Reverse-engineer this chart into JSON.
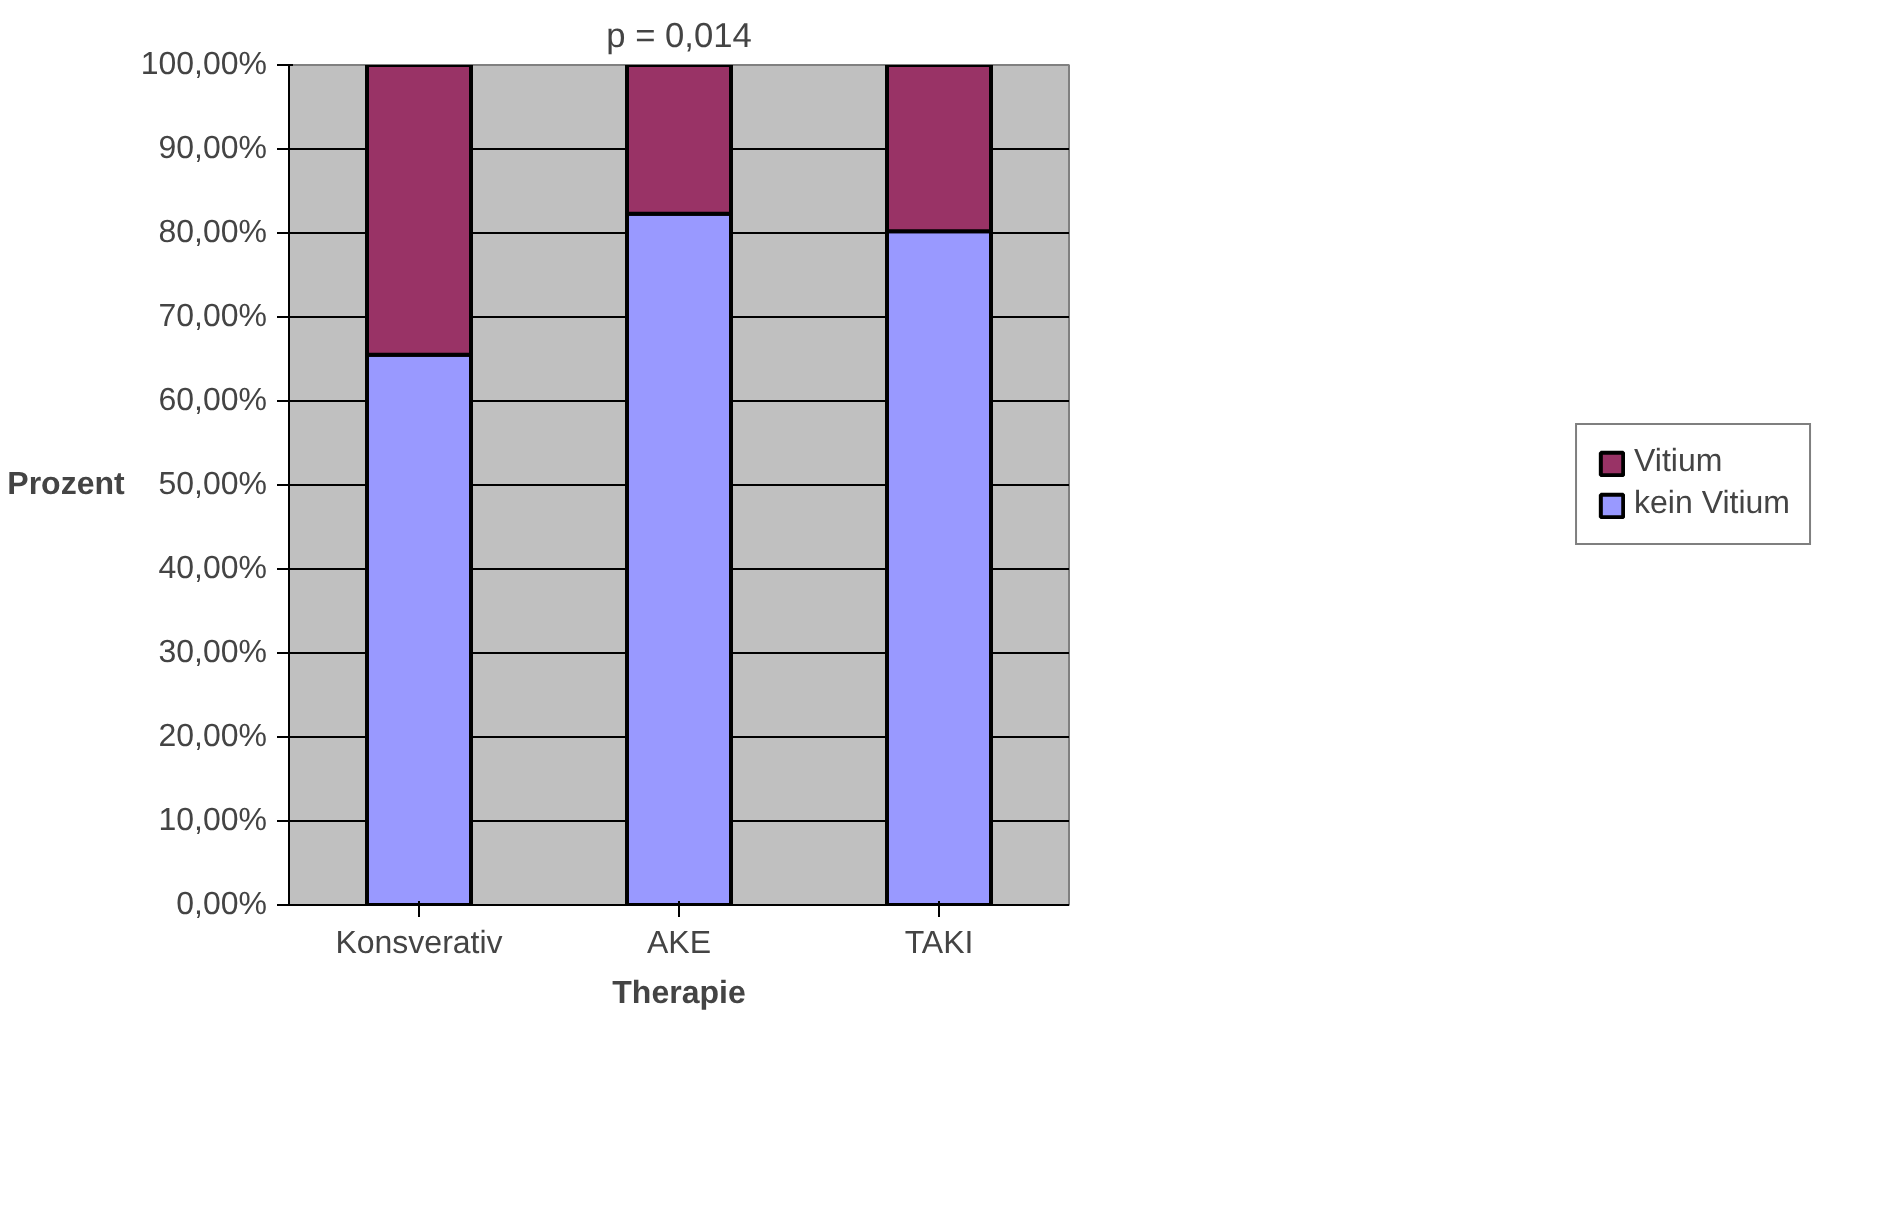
{
  "chart_data": {
    "type": "bar",
    "stacked": true,
    "xlabel": "Therapie",
    "ylabel": "Prozent",
    "annotations": [
      "p = 0,014"
    ],
    "categories": [
      "Konsverativ",
      "AKE",
      "TAKI"
    ],
    "series": [
      {
        "name": "kein Vitium",
        "color": "#9999ff",
        "values": [
          65.5,
          82.3,
          80.2
        ]
      },
      {
        "name": "Vitium",
        "color": "#993366",
        "values": [
          34.5,
          17.7,
          19.8
        ]
      }
    ],
    "ylim": [
      0,
      100
    ],
    "yticks": [
      {
        "value": 0,
        "label": "0,00%"
      },
      {
        "value": 10,
        "label": "10,00%"
      },
      {
        "value": 20,
        "label": "20,00%"
      },
      {
        "value": 30,
        "label": "30,00%"
      },
      {
        "value": 40,
        "label": "40,00%"
      },
      {
        "value": 50,
        "label": "50,00%"
      },
      {
        "value": 60,
        "label": "60,00%"
      },
      {
        "value": 70,
        "label": "70,00%"
      },
      {
        "value": 80,
        "label": "80,00%"
      },
      {
        "value": 90,
        "label": "90,00%"
      },
      {
        "value": 100,
        "label": "100,00%"
      }
    ],
    "grid": "y",
    "legend": "right"
  }
}
